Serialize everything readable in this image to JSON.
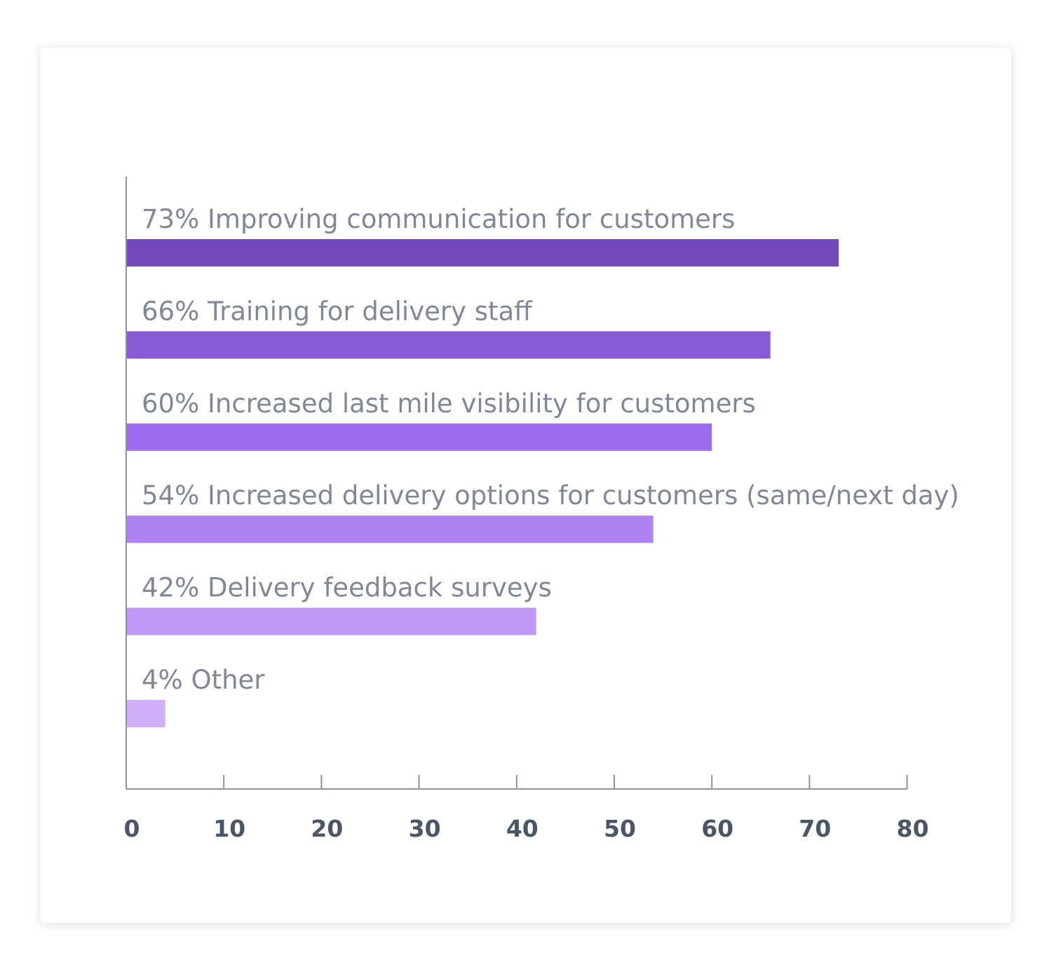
{
  "chart_data": {
    "type": "bar",
    "orientation": "horizontal",
    "categories": [
      "73% Improving communication for customers",
      "66% Training for delivery staff",
      "60% Increased last mile visibility for customers",
      "54% Increased delivery options for customers (same/next day)",
      "42% Delivery feedback surveys",
      "4% Other"
    ],
    "values": [
      73,
      66,
      60,
      54,
      42,
      4
    ],
    "colors": [
      "#7249b9",
      "#865bd3",
      "#9d6bee",
      "#ad84f2",
      "#bf98f5",
      "#d0b0fa"
    ],
    "xlim": [
      0,
      80
    ],
    "xticks": [
      0,
      10,
      20,
      30,
      40,
      50,
      60,
      70,
      80
    ],
    "title": "",
    "xlabel": "",
    "ylabel": "",
    "grid": false,
    "legend": "none"
  },
  "style": {
    "axis_color": "#8f939b",
    "label_color": "#818894",
    "tick_label_color": "#4a5566"
  }
}
